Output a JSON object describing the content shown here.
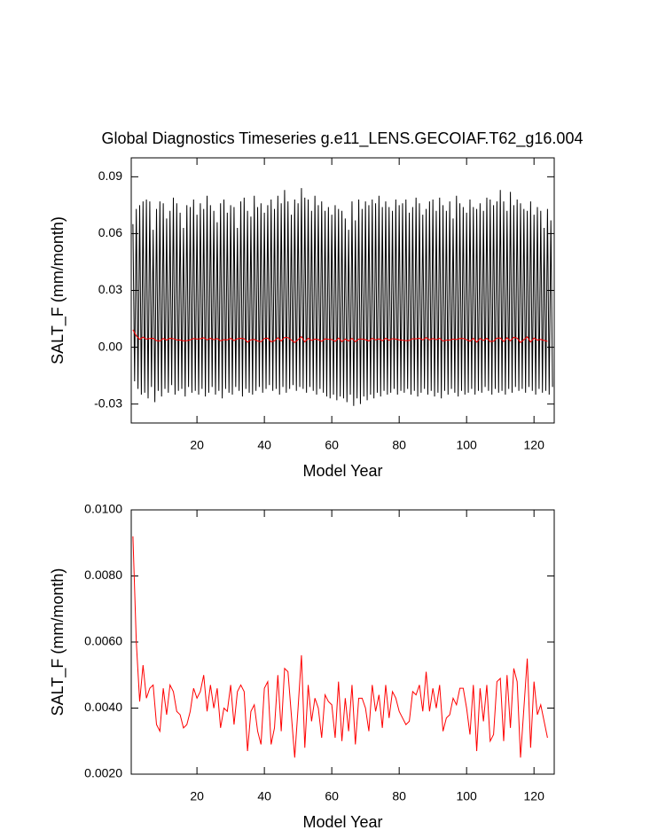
{
  "chart_data": [
    {
      "type": "line",
      "title": "Global Diagnostics Timeseries g.e11_LENS.GECOIAF.T62_g16.004",
      "xlabel": "Model Year",
      "ylabel": "SALT_F (mm/month)",
      "xlim": [
        0.5,
        126
      ],
      "ylim": [
        -0.04,
        0.1
      ],
      "xticks": [
        20,
        40,
        60,
        80,
        100,
        120
      ],
      "yticks": [
        {
          "value": -0.03,
          "label": "-0.03"
        },
        {
          "value": 0,
          "label": "0.00"
        },
        {
          "value": 0.03,
          "label": "0.03"
        },
        {
          "value": 0.06,
          "label": "0.06"
        },
        {
          "value": 0.09,
          "label": "0.09"
        }
      ],
      "series": [
        {
          "color": "#000000",
          "x": [
            1,
            1.5,
            2,
            2.5,
            3,
            3.5,
            4,
            4.5,
            5,
            5.5,
            6,
            6.5,
            7,
            7.5,
            8,
            8.5,
            9,
            9.5,
            10,
            10.5,
            11,
            11.5,
            12,
            12.5,
            13,
            13.5,
            14,
            14.5,
            15,
            15.5,
            16,
            16.5,
            17,
            17.5,
            18,
            18.5,
            19,
            19.5,
            20,
            20.5,
            21,
            21.5,
            22,
            22.5,
            23,
            23.5,
            24,
            24.5,
            25,
            25.5,
            26,
            26.5,
            27,
            27.5,
            28,
            28.5,
            29,
            29.5,
            30,
            30.5,
            31,
            31.5,
            32,
            32.5,
            33,
            33.5,
            34,
            34.5,
            35,
            35.5,
            36,
            36.5,
            37,
            37.5,
            38,
            38.5,
            39,
            39.5,
            40,
            40.5,
            41,
            41.5,
            42,
            42.5,
            43,
            43.5,
            44,
            44.5,
            45,
            45.5,
            46,
            46.5,
            47,
            47.5,
            48,
            48.5,
            49,
            49.5,
            50,
            50.5,
            51,
            51.5,
            52,
            52.5,
            53,
            53.5,
            54,
            54.5,
            55,
            55.5,
            56,
            56.5,
            57,
            57.5,
            58,
            58.5,
            59,
            59.5,
            60,
            60.5,
            61,
            61.5,
            62,
            62.5,
            63,
            63.5,
            64,
            64.5,
            65,
            65.5,
            66,
            66.5,
            67,
            67.5,
            68,
            68.5,
            69,
            69.5,
            70,
            70.5,
            71,
            71.5,
            72,
            72.5,
            73,
            73.5,
            74,
            74.5,
            75,
            75.5,
            76,
            76.5,
            77,
            77.5,
            78,
            78.5,
            79,
            79.5,
            80,
            80.5,
            81,
            81.5,
            82,
            82.5,
            83,
            83.5,
            84,
            84.5,
            85,
            85.5,
            86,
            86.5,
            87,
            87.5,
            88,
            88.5,
            89,
            89.5,
            90,
            90.5,
            91,
            91.5,
            92,
            92.5,
            93,
            93.5,
            94,
            94.5,
            95,
            95.5,
            96,
            96.5,
            97,
            97.5,
            98,
            98.5,
            99,
            99.5,
            100,
            100.5,
            101,
            101.5,
            102,
            102.5,
            103,
            103.5,
            104,
            104.5,
            105,
            105.5,
            106,
            106.5,
            107,
            107.5,
            108,
            108.5,
            109,
            109.5,
            110,
            110.5,
            111,
            111.5,
            112,
            112.5,
            113,
            113.5,
            114,
            114.5,
            115,
            115.5,
            116,
            116.5,
            117,
            117.5,
            118,
            118.5,
            119,
            119.5,
            120,
            120.5,
            121,
            121.5,
            122,
            122.5,
            123,
            123.5,
            124,
            124.5,
            125,
            125.5
          ],
          "values": [
            0.065,
            -0.018,
            0.073,
            -0.022,
            0.075,
            -0.025,
            0.077,
            -0.024,
            0.078,
            -0.027,
            0.077,
            -0.021,
            0.062,
            -0.029,
            0.073,
            -0.023,
            0.077,
            -0.026,
            0.076,
            -0.022,
            0.068,
            -0.024,
            0.072,
            -0.02,
            0.079,
            -0.025,
            0.076,
            -0.023,
            0.071,
            -0.022,
            0.063,
            -0.026,
            0.075,
            -0.021,
            0.074,
            -0.024,
            0.078,
            -0.023,
            0.07,
            -0.025,
            0.076,
            -0.022,
            0.073,
            -0.026,
            0.08,
            -0.024,
            0.075,
            -0.021,
            0.072,
            -0.025,
            0.066,
            -0.023,
            0.076,
            -0.027,
            0.078,
            -0.022,
            0.071,
            -0.024,
            0.075,
            -0.025,
            0.074,
            -0.021,
            0.063,
            -0.023,
            0.077,
            -0.026,
            0.079,
            -0.022,
            0.072,
            -0.024,
            0.069,
            -0.025,
            0.08,
            -0.023,
            0.074,
            -0.021,
            0.076,
            -0.024,
            0.071,
            -0.022,
            0.075,
            -0.02,
            0.078,
            -0.023,
            0.073,
            -0.022,
            0.08,
            -0.025,
            0.076,
            -0.021,
            0.083,
            -0.024,
            0.077,
            -0.022,
            0.07,
            -0.02,
            0.078,
            -0.023,
            0.076,
            -0.021,
            0.084,
            -0.022,
            0.079,
            -0.024,
            0.078,
            -0.021,
            0.072,
            -0.023,
            0.08,
            -0.025,
            0.075,
            -0.022,
            0.077,
            -0.024,
            0.072,
            -0.026,
            0.074,
            -0.027,
            0.07,
            -0.025,
            0.075,
            -0.028,
            0.073,
            -0.026,
            0.072,
            -0.027,
            0.068,
            -0.029,
            0.062,
            -0.025,
            0.077,
            -0.031,
            0.067,
            -0.027,
            0.078,
            -0.03,
            0.073,
            -0.026,
            0.077,
            -0.028,
            0.075,
            -0.025,
            0.078,
            -0.027,
            0.076,
            -0.024,
            0.08,
            -0.026,
            0.074,
            -0.023,
            0.077,
            -0.025,
            0.074,
            -0.024,
            0.072,
            -0.022,
            0.078,
            -0.025,
            0.075,
            -0.023,
            0.076,
            -0.024,
            0.078,
            -0.022,
            0.071,
            -0.025,
            0.074,
            -0.023,
            0.079,
            -0.026,
            0.076,
            -0.024,
            0.07,
            -0.022,
            0.073,
            -0.025,
            0.077,
            -0.023,
            0.078,
            -0.026,
            0.072,
            -0.024,
            0.079,
            -0.027,
            0.075,
            -0.023,
            0.072,
            -0.025,
            0.077,
            -0.022,
            0.068,
            -0.024,
            0.08,
            -0.026,
            0.076,
            -0.023,
            0.074,
            -0.025,
            0.071,
            -0.024,
            0.078,
            -0.022,
            0.074,
            -0.025,
            0.073,
            -0.023,
            0.076,
            -0.024,
            0.072,
            -0.021,
            0.079,
            -0.023,
            0.078,
            -0.025,
            0.075,
            -0.022,
            0.077,
            -0.024,
            0.083,
            -0.023,
            0.077,
            -0.025,
            0.072,
            -0.022,
            0.082,
            -0.024,
            0.075,
            -0.021,
            0.078,
            -0.023,
            0.076,
            -0.022,
            0.073,
            -0.024,
            0.072,
            -0.021,
            0.077,
            -0.023,
            0.07,
            -0.025,
            0.074,
            -0.022,
            0.072,
            -0.024,
            0.063,
            -0.023,
            0.073,
            -0.025,
            0.067,
            -0.021
          ]
        },
        {
          "color": "#ff0000",
          "x": [
            1,
            2,
            3,
            4,
            5,
            6,
            7,
            8,
            9,
            10,
            11,
            12,
            13,
            14,
            15,
            16,
            17,
            18,
            19,
            20,
            21,
            22,
            23,
            24,
            25,
            26,
            27,
            28,
            29,
            30,
            31,
            32,
            33,
            34,
            35,
            36,
            37,
            38,
            39,
            40,
            41,
            42,
            43,
            44,
            45,
            46,
            47,
            48,
            49,
            50,
            51,
            52,
            53,
            54,
            55,
            56,
            57,
            58,
            59,
            60,
            61,
            62,
            63,
            64,
            65,
            66,
            67,
            68,
            69,
            70,
            71,
            72,
            73,
            74,
            75,
            76,
            77,
            78,
            79,
            80,
            81,
            82,
            83,
            84,
            85,
            86,
            87,
            88,
            89,
            90,
            91,
            92,
            93,
            94,
            95,
            96,
            97,
            98,
            99,
            100,
            101,
            102,
            103,
            104,
            105,
            106,
            107,
            108,
            109,
            110,
            111,
            112,
            113,
            114,
            115,
            116,
            117,
            118,
            119,
            120,
            121,
            122,
            123,
            124
          ],
          "values": [
            0.0092,
            0.006,
            0.0042,
            0.0053,
            0.0043,
            0.0046,
            0.0047,
            0.0035,
            0.0033,
            0.0046,
            0.0038,
            0.0047,
            0.0045,
            0.0039,
            0.0038,
            0.0034,
            0.0035,
            0.0039,
            0.0046,
            0.0043,
            0.0045,
            0.005,
            0.0039,
            0.0047,
            0.004,
            0.0046,
            0.0034,
            0.004,
            0.0039,
            0.0047,
            0.0035,
            0.0045,
            0.0047,
            0.0045,
            0.0027,
            0.0039,
            0.0041,
            0.0033,
            0.0029,
            0.0046,
            0.0048,
            0.0029,
            0.0034,
            0.005,
            0.0033,
            0.0052,
            0.0051,
            0.0038,
            0.0025,
            0.004,
            0.0056,
            0.0028,
            0.0047,
            0.0036,
            0.0043,
            0.004,
            0.0031,
            0.0044,
            0.0042,
            0.0041,
            0.0031,
            0.0048,
            0.003,
            0.0043,
            0.0033,
            0.0047,
            0.0029,
            0.0043,
            0.0043,
            0.004,
            0.0033,
            0.0047,
            0.0039,
            0.0044,
            0.0034,
            0.0047,
            0.0037,
            0.0045,
            0.0043,
            0.0039,
            0.0037,
            0.0035,
            0.0036,
            0.0045,
            0.0044,
            0.0047,
            0.0039,
            0.0051,
            0.0039,
            0.0046,
            0.004,
            0.0047,
            0.0033,
            0.0037,
            0.0038,
            0.0043,
            0.0041,
            0.0046,
            0.0046,
            0.004,
            0.0032,
            0.0047,
            0.0027,
            0.0046,
            0.0036,
            0.0047,
            0.003,
            0.0032,
            0.0048,
            0.0049,
            0.003,
            0.005,
            0.0034,
            0.0052,
            0.0048,
            0.0025,
            0.004,
            0.0055,
            0.0028,
            0.0048,
            0.0038,
            0.0041,
            0.0036,
            0.0031
          ]
        }
      ]
    },
    {
      "type": "line",
      "xlabel": "Model Year",
      "ylabel": "SALT_F (mm/month)",
      "xlim": [
        0.5,
        126
      ],
      "ylim": [
        0.002,
        0.01
      ],
      "xticks": [
        20,
        40,
        60,
        80,
        100,
        120
      ],
      "yticks": [
        {
          "value": 0.002,
          "label": "0.0020"
        },
        {
          "value": 0.004,
          "label": "0.0040"
        },
        {
          "value": 0.006,
          "label": "0.0060"
        },
        {
          "value": 0.008,
          "label": "0.0080"
        },
        {
          "value": 0.01,
          "label": "0.0100"
        }
      ],
      "series": [
        {
          "color": "#ff0000",
          "x": [
            1,
            2,
            3,
            4,
            5,
            6,
            7,
            8,
            9,
            10,
            11,
            12,
            13,
            14,
            15,
            16,
            17,
            18,
            19,
            20,
            21,
            22,
            23,
            24,
            25,
            26,
            27,
            28,
            29,
            30,
            31,
            32,
            33,
            34,
            35,
            36,
            37,
            38,
            39,
            40,
            41,
            42,
            43,
            44,
            45,
            46,
            47,
            48,
            49,
            50,
            51,
            52,
            53,
            54,
            55,
            56,
            57,
            58,
            59,
            60,
            61,
            62,
            63,
            64,
            65,
            66,
            67,
            68,
            69,
            70,
            71,
            72,
            73,
            74,
            75,
            76,
            77,
            78,
            79,
            80,
            81,
            82,
            83,
            84,
            85,
            86,
            87,
            88,
            89,
            90,
            91,
            92,
            93,
            94,
            95,
            96,
            97,
            98,
            99,
            100,
            101,
            102,
            103,
            104,
            105,
            106,
            107,
            108,
            109,
            110,
            111,
            112,
            113,
            114,
            115,
            116,
            117,
            118,
            119,
            120,
            121,
            122,
            123,
            124
          ],
          "values": [
            0.0092,
            0.006,
            0.0042,
            0.0053,
            0.0043,
            0.0046,
            0.0047,
            0.0035,
            0.0033,
            0.0046,
            0.0038,
            0.0047,
            0.0045,
            0.0039,
            0.0038,
            0.0034,
            0.0035,
            0.0039,
            0.0046,
            0.0043,
            0.0045,
            0.005,
            0.0039,
            0.0047,
            0.004,
            0.0046,
            0.0034,
            0.004,
            0.0039,
            0.0047,
            0.0035,
            0.0045,
            0.0047,
            0.0045,
            0.0027,
            0.0039,
            0.0041,
            0.0033,
            0.0029,
            0.0046,
            0.0048,
            0.0029,
            0.0034,
            0.005,
            0.0033,
            0.0052,
            0.0051,
            0.0038,
            0.0025,
            0.004,
            0.0056,
            0.0028,
            0.0047,
            0.0036,
            0.0043,
            0.004,
            0.0031,
            0.0044,
            0.0042,
            0.0041,
            0.0031,
            0.0048,
            0.003,
            0.0043,
            0.0033,
            0.0047,
            0.0029,
            0.0043,
            0.0043,
            0.004,
            0.0033,
            0.0047,
            0.0039,
            0.0044,
            0.0034,
            0.0047,
            0.0037,
            0.0045,
            0.0043,
            0.0039,
            0.0037,
            0.0035,
            0.0036,
            0.0045,
            0.0044,
            0.0047,
            0.0039,
            0.0051,
            0.0039,
            0.0046,
            0.004,
            0.0047,
            0.0033,
            0.0037,
            0.0038,
            0.0043,
            0.0041,
            0.0046,
            0.0046,
            0.004,
            0.0032,
            0.0047,
            0.0027,
            0.0046,
            0.0036,
            0.0047,
            0.003,
            0.0032,
            0.0048,
            0.0049,
            0.003,
            0.005,
            0.0034,
            0.0052,
            0.0048,
            0.0025,
            0.004,
            0.0055,
            0.0028,
            0.0048,
            0.0038,
            0.0041,
            0.0036,
            0.0031
          ]
        }
      ]
    }
  ]
}
